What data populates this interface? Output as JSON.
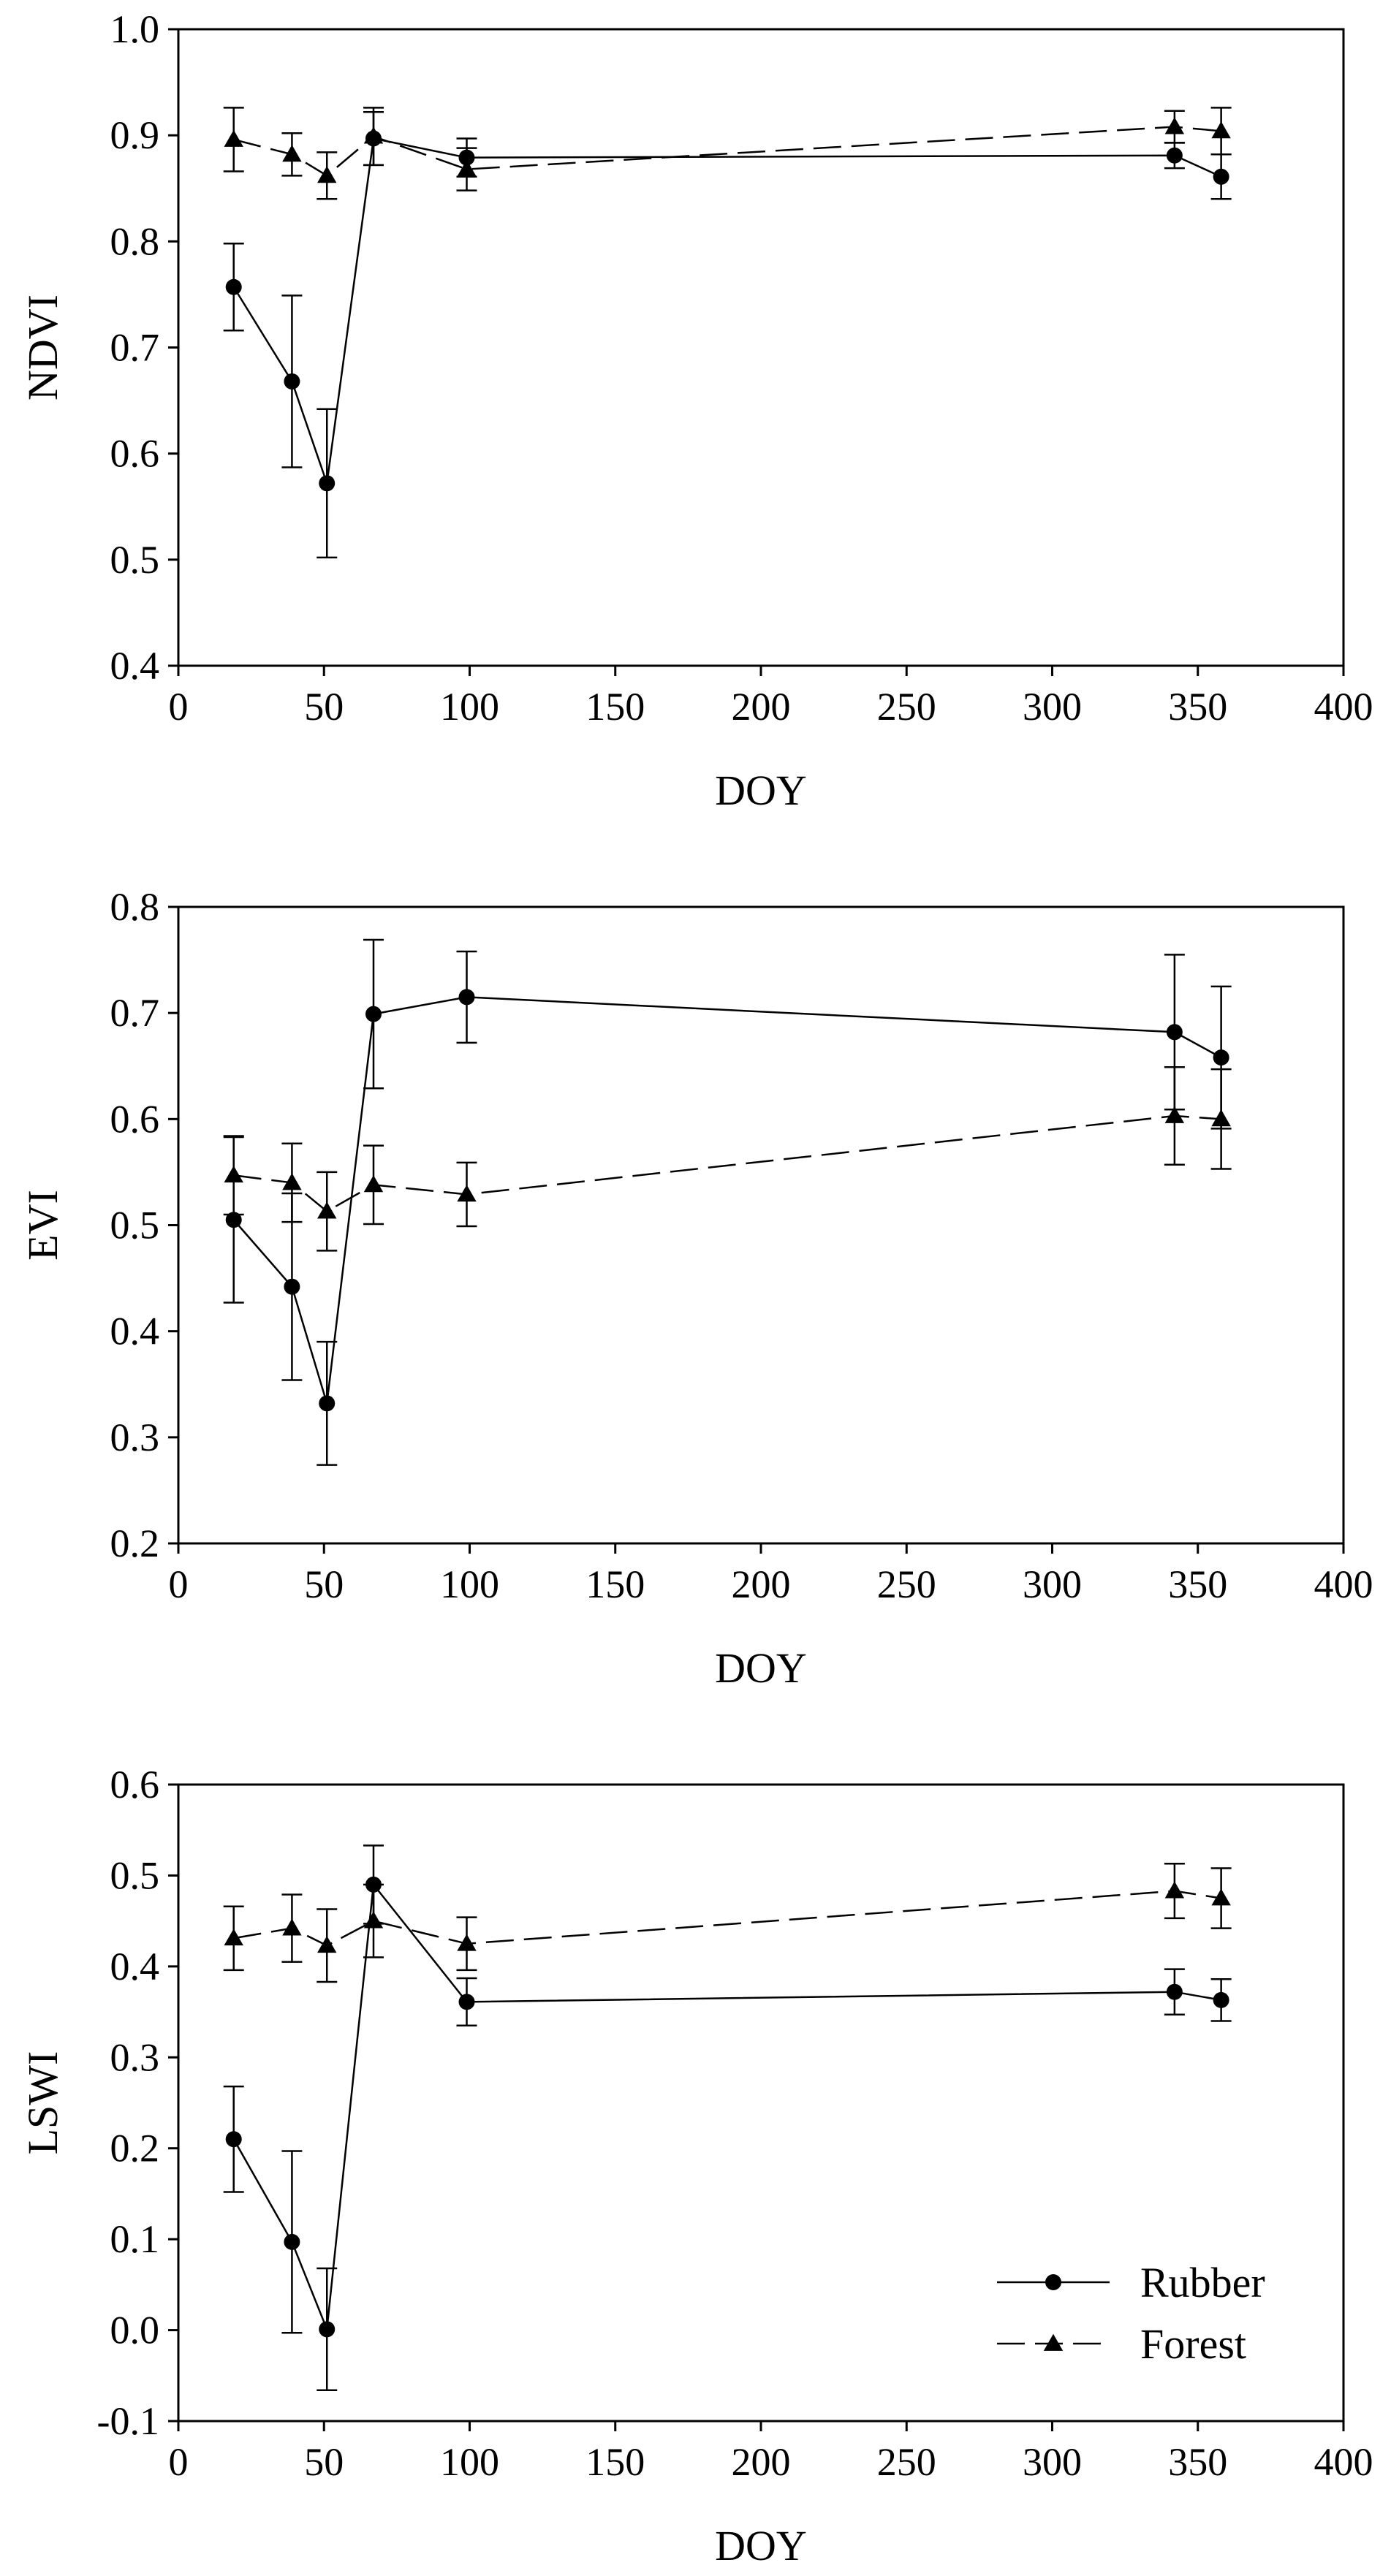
{
  "chart_data": [
    {
      "type": "line",
      "title": "",
      "xlabel": "DOY",
      "ylabel": "NDVI",
      "xlim": [
        0,
        400
      ],
      "ylim": [
        0.4,
        1.0
      ],
      "xticks": [
        "0",
        "50",
        "100",
        "150",
        "200",
        "250",
        "300",
        "350",
        "400"
      ],
      "yticks": [
        "0.4",
        "0.5",
        "0.6",
        "0.7",
        "0.8",
        "0.9",
        "1.0"
      ],
      "grid": false,
      "x": [
        19,
        39,
        51,
        67,
        99,
        342,
        358
      ],
      "series": [
        {
          "name": "Rubber",
          "marker": "circle",
          "linestyle": "solid",
          "values": [
            0.757,
            0.668,
            0.572,
            0.897,
            0.879,
            0.881,
            0.861
          ],
          "errors": [
            0.041,
            0.081,
            0.07,
            0.025,
            0.018,
            0.012,
            0.021
          ]
        },
        {
          "name": "Forest",
          "marker": "triangle",
          "linestyle": "dashed",
          "values": [
            0.896,
            0.882,
            0.862,
            0.899,
            0.868,
            0.908,
            0.904
          ],
          "errors": [
            0.03,
            0.02,
            0.022,
            0.027,
            0.02,
            0.015,
            0.022
          ]
        }
      ]
    },
    {
      "type": "line",
      "title": "",
      "xlabel": "DOY",
      "ylabel": "EVI",
      "xlim": [
        0,
        400
      ],
      "ylim": [
        0.2,
        0.8
      ],
      "xticks": [
        "0",
        "50",
        "100",
        "150",
        "200",
        "250",
        "300",
        "350",
        "400"
      ],
      "yticks": [
        "0.2",
        "0.3",
        "0.4",
        "0.5",
        "0.6",
        "0.7",
        "0.8"
      ],
      "grid": false,
      "x": [
        19,
        39,
        51,
        67,
        99,
        342,
        358
      ],
      "series": [
        {
          "name": "Rubber",
          "marker": "circle",
          "linestyle": "solid",
          "values": [
            0.505,
            0.442,
            0.332,
            0.699,
            0.715,
            0.682,
            0.658
          ],
          "errors": [
            0.078,
            0.088,
            0.058,
            0.07,
            0.043,
            0.073,
            0.067
          ]
        },
        {
          "name": "Forest",
          "marker": "triangle",
          "linestyle": "dashed",
          "values": [
            0.547,
            0.54,
            0.513,
            0.538,
            0.529,
            0.603,
            0.6
          ],
          "errors": [
            0.037,
            0.037,
            0.037,
            0.037,
            0.03,
            0.046,
            0.047
          ]
        }
      ]
    },
    {
      "type": "line",
      "title": "",
      "xlabel": "DOY",
      "ylabel": "LSWI",
      "xlim": [
        0,
        400
      ],
      "ylim": [
        -0.1,
        0.6
      ],
      "xticks": [
        "0",
        "50",
        "100",
        "150",
        "200",
        "250",
        "300",
        "350",
        "400"
      ],
      "yticks": [
        "-0.1",
        "0.0",
        "0.1",
        "0.2",
        "0.3",
        "0.4",
        "0.5",
        "0.6"
      ],
      "grid": false,
      "legend": "bottom-right",
      "x": [
        19,
        39,
        51,
        67,
        99,
        342,
        358
      ],
      "series": [
        {
          "name": "Rubber",
          "marker": "circle",
          "linestyle": "solid",
          "values": [
            0.21,
            0.097,
            0.001,
            0.49,
            0.361,
            0.372,
            0.363
          ],
          "errors": [
            0.058,
            0.1,
            0.067,
            0.043,
            0.026,
            0.025,
            0.023
          ]
        },
        {
          "name": "Forest",
          "marker": "triangle",
          "linestyle": "dashed",
          "values": [
            0.431,
            0.442,
            0.423,
            0.45,
            0.425,
            0.483,
            0.475
          ],
          "errors": [
            0.035,
            0.037,
            0.04,
            0.04,
            0.029,
            0.03,
            0.033
          ]
        }
      ]
    }
  ]
}
